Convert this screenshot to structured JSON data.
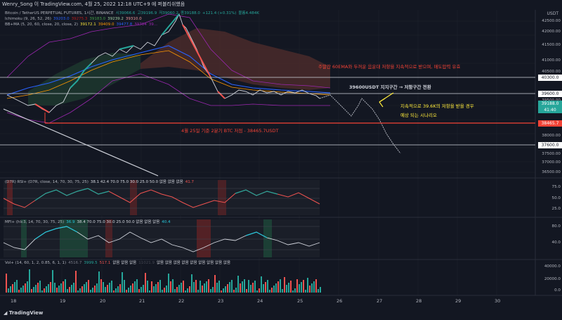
{
  "header": {
    "text": "Wenry_Song 이 TradingView.com, 4월 25, 2022 12:18 UTC+9 에 퍼블리쉬했음"
  },
  "currency": "USDT",
  "main_legend": [
    {
      "label": "Bitcoin / TetherUS PERPETUAL FUTURES, 1시간, BINANCE",
      "color": "#b2b5be"
    },
    {
      "label": "시39066.6",
      "color": "#26a69a"
    },
    {
      "label": "고39196.9",
      "color": "#26a69a"
    },
    {
      "label": "저39060.2",
      "color": "#26a69a"
    },
    {
      "label": "종39188.0",
      "color": "#26a69a"
    },
    {
      "label": "+121.4 (+0.31%)",
      "color": "#26a69a"
    },
    {
      "label": "볼륨4.484K",
      "color": "#26a69a"
    }
  ],
  "ichimoku_legend": [
    {
      "label": "Ichimoku (9, 26, 52, 26)",
      "color": "#b2b5be"
    },
    {
      "label": "39203.0",
      "color": "#2962ff"
    },
    {
      "label": "39275.3",
      "color": "#b71c1c"
    },
    {
      "label": "39183.0",
      "color": "#43a047"
    },
    {
      "label": "39239.2",
      "color": "#a5d6a7"
    },
    {
      "label": "39310.0",
      "color": "#ef9a9a"
    }
  ],
  "bb_legend": [
    {
      "label": "BB+MA (5, 20, 60, close, 20, close, 2)",
      "color": "#b2b5be"
    },
    {
      "label": "39172.1",
      "color": "#ffeb3b"
    },
    {
      "label": "39409.0",
      "color": "#ff9800"
    },
    {
      "label": "39477.8",
      "color": "#2962ff"
    },
    {
      "label": "39784",
      "color": "#9c27b0"
    },
    {
      "label": "39...",
      "color": "#9c27b0"
    }
  ],
  "rsi_legend": [
    {
      "label": "(D7R) RSI+ (D7R, close, 14, 70, 30, 75, 25)",
      "color": "#b2b5be"
    },
    {
      "label": "38.1 42.4 70.0 75.0 30.0 25.0 50.0 없음 없음 없음",
      "color": "#d1d4dc"
    },
    {
      "label": "41.7",
      "color": "#ef5350"
    }
  ],
  "mfi_legend": [
    {
      "label": "MFI+ (hlc3, 14, 70, 30, 75, 25)",
      "color": "#b2b5be"
    },
    {
      "label": "36.9",
      "color": "#26c6da"
    },
    {
      "label": "38.4 70.0 75.0 30.0 25.0 50.0 없음 없음 없음",
      "color": "#d1d4dc"
    },
    {
      "label": "40.4",
      "color": "#26c6da"
    }
  ],
  "vol_legend": [
    {
      "label": "Vol+ (14, 60, 1, 2, 0.85, 6, 1, 1)",
      "color": "#b2b5be"
    },
    {
      "label": "4516.7",
      "color": "#787b86"
    },
    {
      "label": "3999.5",
      "color": "#26a69a"
    },
    {
      "label": "517.1",
      "color": "#ef5350"
    },
    {
      "label": "없음 없음 없음",
      "color": "#d1d4dc"
    },
    {
      "label": "11021.9",
      "color": "#434651"
    },
    {
      "label": "없음 없음 없음 없음 없음 없음 없음 없음 없음",
      "color": "#d1d4dc"
    }
  ],
  "price_axis": [
    "42500.00",
    "42000.00",
    "41500.00",
    "41000.00",
    "40500.00",
    "39500.00",
    "38000.00",
    "37500.00",
    "37000.00",
    "36500.00"
  ],
  "price_marks": [
    {
      "label": "40300.0",
      "color": "#ffffff",
      "text": "#131722"
    },
    {
      "label": "39600.0",
      "color": "#ffffff",
      "text": "#131722"
    },
    {
      "label": "39188.0",
      "color": "#26a69a",
      "text": "#ffffff"
    },
    {
      "label": "41:40",
      "color": "#26a69a",
      "text": "#ffffff"
    },
    {
      "label": "38465.7",
      "color": "#f44336",
      "text": "#ffffff"
    },
    {
      "label": "37600.0",
      "color": "#ffffff",
      "text": "#131722"
    }
  ],
  "rsi_axis": [
    "75.0",
    "50.0",
    "25.0"
  ],
  "mfi_axis": [
    "80.0",
    "40.0"
  ],
  "vol_axis": [
    "40000.0",
    "20000.0",
    "0.0"
  ],
  "dates": [
    "18",
    "19",
    "20",
    "21",
    "22",
    "23",
    "24",
    "25",
    "26",
    "27",
    "28",
    "29",
    "30"
  ],
  "annotations": {
    "ema": "주말간 60EMA와 두꺼운 음운대 저항을 지속적으로 받으며, 매도압력 유효",
    "support": "39600USDT 지지구간 → 저항구간 전환",
    "resist1": "지속적으로 39.6K의 저항을 받을 경우",
    "resist2": "예상 되는 시나리오",
    "low": "4월 25일 기준 2분기 BTC 저점 - 38465.7USDT"
  },
  "footer": "TradingView",
  "colors": {
    "bg": "#131722",
    "up": "#26a69a",
    "down": "#ef5350",
    "cloud_red": "#4a2a2a",
    "cloud_green": "#1e3a30"
  }
}
